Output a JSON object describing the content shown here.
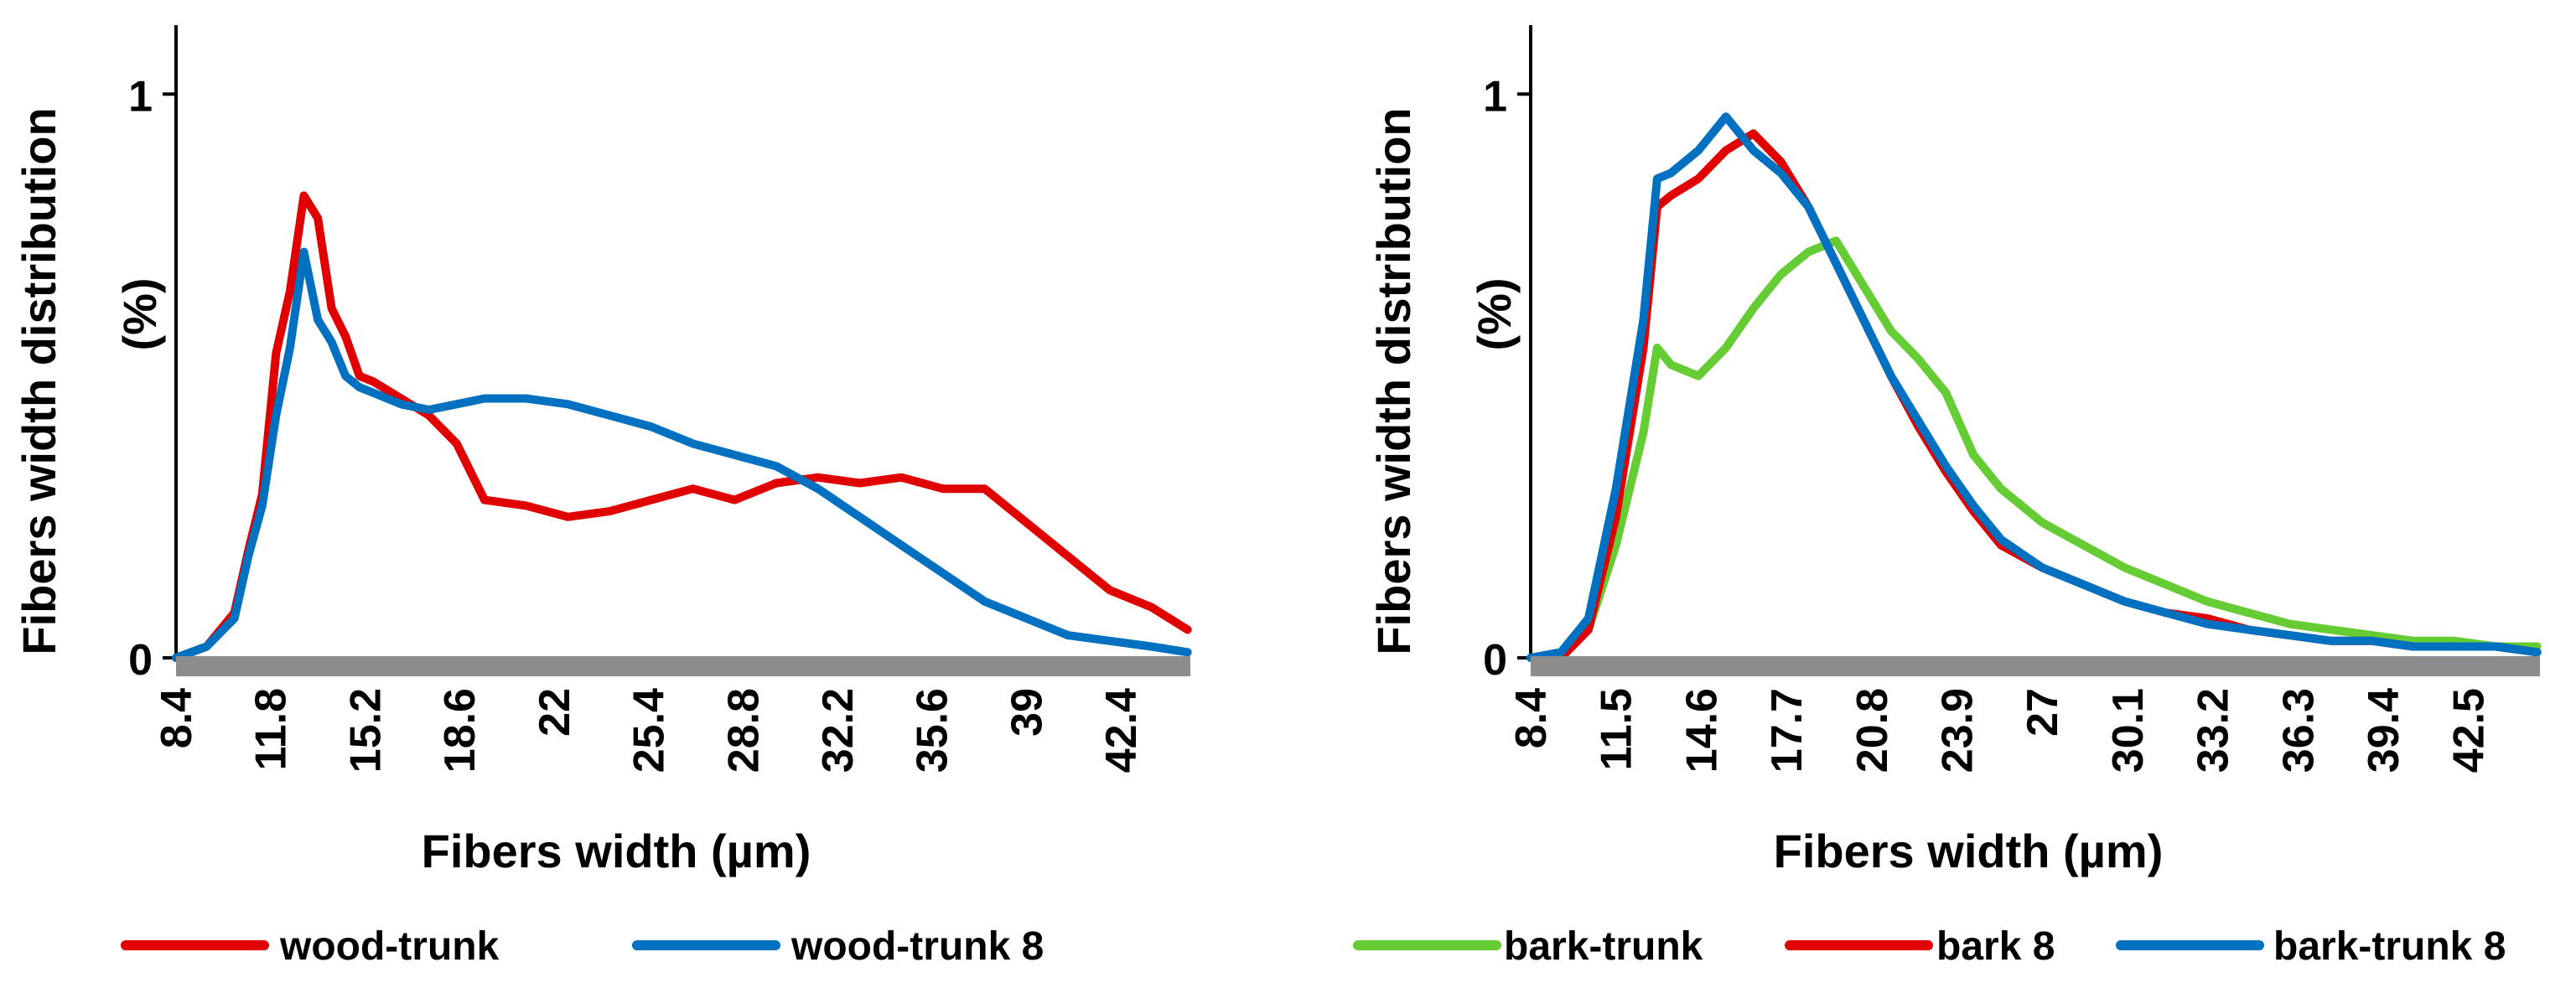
{
  "chart_data": [
    {
      "type": "line",
      "title": "",
      "xlabel": "Fibers width  (µm)",
      "ylabel_line1": "Fibers width distribution",
      "ylabel_line2": "(%)",
      "xlim": [
        8.4,
        44.9
      ],
      "ylim": [
        0,
        1.1
      ],
      "x_tick_labels": [
        "8.4",
        "11.8",
        "15.2",
        "18.6",
        "22",
        "25.4",
        "28.8",
        "32.2",
        "35.6",
        "39",
        "42.4"
      ],
      "x_tick_values": [
        8.4,
        11.8,
        15.2,
        18.6,
        22.0,
        25.4,
        28.8,
        32.2,
        35.6,
        39.0,
        42.4
      ],
      "y_tick_labels": [
        "0",
        "1"
      ],
      "y_tick_values": [
        0,
        1
      ],
      "grid": false,
      "legend_position": "bottom",
      "series": [
        {
          "name": "wood-trunk",
          "color": "#e00000",
          "x": [
            8.4,
            9.5,
            10.5,
            11.0,
            11.5,
            12.0,
            12.5,
            13.0,
            13.5,
            14.0,
            14.5,
            15.0,
            15.5,
            16.5,
            17.5,
            18.5,
            19.5,
            21.0,
            22.5,
            24.0,
            25.5,
            27.0,
            28.5,
            30.0,
            31.5,
            33.0,
            34.5,
            36.0,
            37.5,
            39.0,
            40.5,
            42.0,
            43.5,
            44.8
          ],
          "y": [
            0.0,
            0.02,
            0.08,
            0.19,
            0.29,
            0.54,
            0.65,
            0.82,
            0.78,
            0.62,
            0.57,
            0.5,
            0.49,
            0.46,
            0.43,
            0.38,
            0.28,
            0.27,
            0.25,
            0.26,
            0.28,
            0.3,
            0.28,
            0.31,
            0.32,
            0.31,
            0.32,
            0.3,
            0.3,
            0.24,
            0.18,
            0.12,
            0.09,
            0.05
          ]
        },
        {
          "name": "wood-trunk 8",
          "color": "#0070c0",
          "x": [
            8.4,
            9.5,
            10.5,
            11.0,
            11.5,
            12.0,
            12.5,
            13.0,
            13.5,
            14.0,
            14.5,
            15.0,
            15.5,
            16.5,
            17.5,
            18.5,
            19.5,
            21.0,
            22.5,
            24.0,
            25.5,
            27.0,
            28.5,
            30.0,
            31.5,
            33.0,
            34.5,
            36.0,
            37.5,
            39.0,
            40.5,
            42.0,
            43.5,
            44.8
          ],
          "y": [
            0.0,
            0.02,
            0.07,
            0.18,
            0.27,
            0.43,
            0.55,
            0.72,
            0.6,
            0.56,
            0.5,
            0.48,
            0.47,
            0.45,
            0.44,
            0.45,
            0.46,
            0.46,
            0.45,
            0.43,
            0.41,
            0.38,
            0.36,
            0.34,
            0.3,
            0.25,
            0.2,
            0.15,
            0.1,
            0.07,
            0.04,
            0.03,
            0.02,
            0.01
          ]
        }
      ],
      "legend": [
        {
          "name": "wood-trunk",
          "color": "#e00000"
        },
        {
          "name": "wood-trunk 8",
          "color": "#0070c0"
        }
      ]
    },
    {
      "type": "line",
      "title": "",
      "xlabel": "Fibers width  (µm)",
      "ylabel_line1": "Fibers width distribution",
      "ylabel_line2": "(%)",
      "xlim": [
        8.4,
        45.1
      ],
      "ylim": [
        0,
        1.1
      ],
      "x_tick_labels": [
        "8.4",
        "11.5",
        "14.6",
        "17.7",
        "20.8",
        "23.9",
        "27",
        "30.1",
        "33.2",
        "36.3",
        "39.4",
        "42.5"
      ],
      "x_tick_values": [
        8.4,
        11.5,
        14.6,
        17.7,
        20.8,
        23.9,
        27.0,
        30.1,
        33.2,
        36.3,
        39.4,
        42.5
      ],
      "y_tick_labels": [
        "0",
        "1"
      ],
      "y_tick_values": [
        0,
        1
      ],
      "grid": false,
      "legend_position": "bottom",
      "series": [
        {
          "name": "bark-trunk",
          "color": "#66cc33",
          "x": [
            8.4,
            9.5,
            10.5,
            11.5,
            12.5,
            13.0,
            13.5,
            14.5,
            15.5,
            16.5,
            17.5,
            18.5,
            19.5,
            20.5,
            21.5,
            22.5,
            23.5,
            24.5,
            25.5,
            27.0,
            28.5,
            30.0,
            31.5,
            33.0,
            34.5,
            36.0,
            37.5,
            39.0,
            40.5,
            42.0,
            43.5,
            45.0
          ],
          "y": [
            0.0,
            0.01,
            0.05,
            0.2,
            0.4,
            0.55,
            0.52,
            0.5,
            0.55,
            0.62,
            0.68,
            0.72,
            0.74,
            0.66,
            0.58,
            0.53,
            0.47,
            0.36,
            0.3,
            0.24,
            0.2,
            0.16,
            0.13,
            0.1,
            0.08,
            0.06,
            0.05,
            0.04,
            0.03,
            0.03,
            0.02,
            0.02
          ]
        },
        {
          "name": "bark 8",
          "color": "#e00000",
          "x": [
            8.4,
            9.5,
            10.5,
            11.5,
            12.5,
            13.0,
            13.5,
            14.5,
            15.5,
            16.5,
            17.5,
            18.5,
            19.5,
            20.5,
            21.5,
            22.5,
            23.5,
            24.5,
            25.5,
            27.0,
            28.5,
            30.0,
            31.5,
            33.0,
            34.5,
            36.0,
            37.5,
            39.0,
            40.5,
            42.0,
            43.5,
            45.0
          ],
          "y": [
            0.0,
            0.0,
            0.05,
            0.25,
            0.55,
            0.8,
            0.82,
            0.85,
            0.9,
            0.93,
            0.88,
            0.8,
            0.7,
            0.6,
            0.5,
            0.41,
            0.33,
            0.26,
            0.2,
            0.16,
            0.13,
            0.1,
            0.08,
            0.07,
            0.05,
            0.04,
            0.03,
            0.03,
            0.02,
            0.02,
            0.02,
            0.01
          ]
        },
        {
          "name": "bark-trunk 8",
          "color": "#0070c0",
          "x": [
            8.4,
            9.5,
            10.5,
            11.5,
            12.5,
            13.0,
            13.5,
            14.5,
            15.5,
            16.5,
            17.5,
            18.5,
            19.5,
            20.5,
            21.5,
            22.5,
            23.5,
            24.5,
            25.5,
            27.0,
            28.5,
            30.0,
            31.5,
            33.0,
            34.5,
            36.0,
            37.5,
            39.0,
            40.5,
            42.0,
            43.5,
            45.0
          ],
          "y": [
            0.0,
            0.01,
            0.07,
            0.3,
            0.6,
            0.85,
            0.86,
            0.9,
            0.96,
            0.9,
            0.86,
            0.8,
            0.7,
            0.6,
            0.5,
            0.42,
            0.34,
            0.27,
            0.21,
            0.16,
            0.13,
            0.1,
            0.08,
            0.06,
            0.05,
            0.04,
            0.03,
            0.03,
            0.02,
            0.02,
            0.02,
            0.01
          ]
        }
      ],
      "legend": [
        {
          "name": "bark-trunk",
          "color": "#66cc33"
        },
        {
          "name": "bark 8",
          "color": "#e00000"
        },
        {
          "name": "bark-trunk 8",
          "color": "#0070c0"
        }
      ]
    }
  ]
}
